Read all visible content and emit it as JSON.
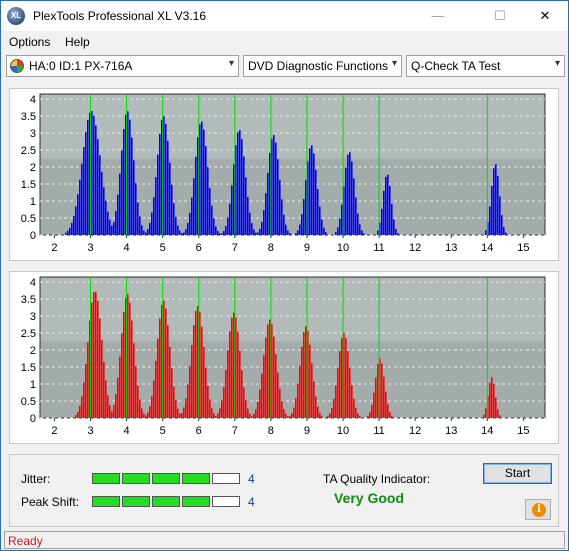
{
  "window": {
    "title": "PlexTools Professional XL V3.16",
    "app_icon_text": "XL"
  },
  "window_controls": {
    "minimize": "—",
    "maximize": "☐",
    "close": "✕"
  },
  "menu": {
    "options": "Options",
    "help": "Help"
  },
  "toolbar": {
    "drive": "HA:0 ID:1  PX-716A",
    "function": "DVD Diagnostic Functions",
    "test": "Q-Check TA Test",
    "arrow": "▾"
  },
  "colors": {
    "top_bars": "#0000ff",
    "bottom_bars": "#ff0000",
    "markers": "#00dd00",
    "plot_bg": "#a3abab"
  },
  "charts": [
    {
      "name": "top",
      "y_ticks": [
        "4",
        "3.5",
        "3",
        "2.5",
        "2",
        "1.5",
        "1",
        "0.5",
        "0"
      ],
      "x_ticks": [
        "2",
        "3",
        "4",
        "5",
        "6",
        "7",
        "8",
        "9",
        "10",
        "11",
        "12",
        "13",
        "14",
        "15"
      ],
      "peaks": [
        {
          "center": 3.0,
          "height": 3.65,
          "width": 0.78
        },
        {
          "center": 4.0,
          "height": 3.65,
          "width": 0.55
        },
        {
          "center": 5.0,
          "height": 3.5,
          "width": 0.55
        },
        {
          "center": 6.05,
          "height": 3.35,
          "width": 0.55
        },
        {
          "center": 7.1,
          "height": 3.1,
          "width": 0.52
        },
        {
          "center": 8.05,
          "height": 2.95,
          "width": 0.5
        },
        {
          "center": 9.1,
          "height": 2.65,
          "width": 0.48
        },
        {
          "center": 10.15,
          "height": 2.45,
          "width": 0.45
        },
        {
          "center": 11.2,
          "height": 1.8,
          "width": 0.35
        },
        {
          "center": 14.2,
          "height": 2.1,
          "width": 0.35
        }
      ],
      "markers": [
        3,
        4,
        5,
        6,
        7,
        8,
        9,
        10,
        11,
        14
      ]
    },
    {
      "name": "bottom",
      "y_ticks": [
        "4",
        "3.5",
        "3",
        "2.5",
        "2",
        "1.5",
        "1",
        "0.5",
        "0"
      ],
      "x_ticks": [
        "2",
        "3",
        "4",
        "5",
        "6",
        "7",
        "8",
        "9",
        "10",
        "11",
        "12",
        "13",
        "14",
        "15"
      ],
      "peaks": [
        {
          "center": 3.1,
          "height": 3.75,
          "width": 0.6
        },
        {
          "center": 4.0,
          "height": 3.65,
          "width": 0.55
        },
        {
          "center": 5.0,
          "height": 3.45,
          "width": 0.55
        },
        {
          "center": 5.95,
          "height": 3.3,
          "width": 0.55
        },
        {
          "center": 6.95,
          "height": 3.1,
          "width": 0.55
        },
        {
          "center": 7.95,
          "height": 2.9,
          "width": 0.55
        },
        {
          "center": 8.95,
          "height": 2.7,
          "width": 0.5
        },
        {
          "center": 10.0,
          "height": 2.5,
          "width": 0.5
        },
        {
          "center": 11.0,
          "height": 1.75,
          "width": 0.4
        },
        {
          "center": 14.1,
          "height": 1.2,
          "width": 0.3
        }
      ],
      "markers": [
        3,
        4,
        5,
        6,
        7,
        8,
        9,
        10,
        11,
        14
      ]
    }
  ],
  "results": {
    "jitter_label": "Jitter:",
    "jitter_segments_on": 4,
    "jitter_value": "4",
    "peak_label": "Peak Shift:",
    "peak_segments_on": 4,
    "peak_value": "4",
    "ta_label": "TA Quality Indicator:",
    "ta_value": "Very Good",
    "start_label": "Start",
    "info_symbol": "i"
  },
  "status": {
    "text": "Ready"
  }
}
